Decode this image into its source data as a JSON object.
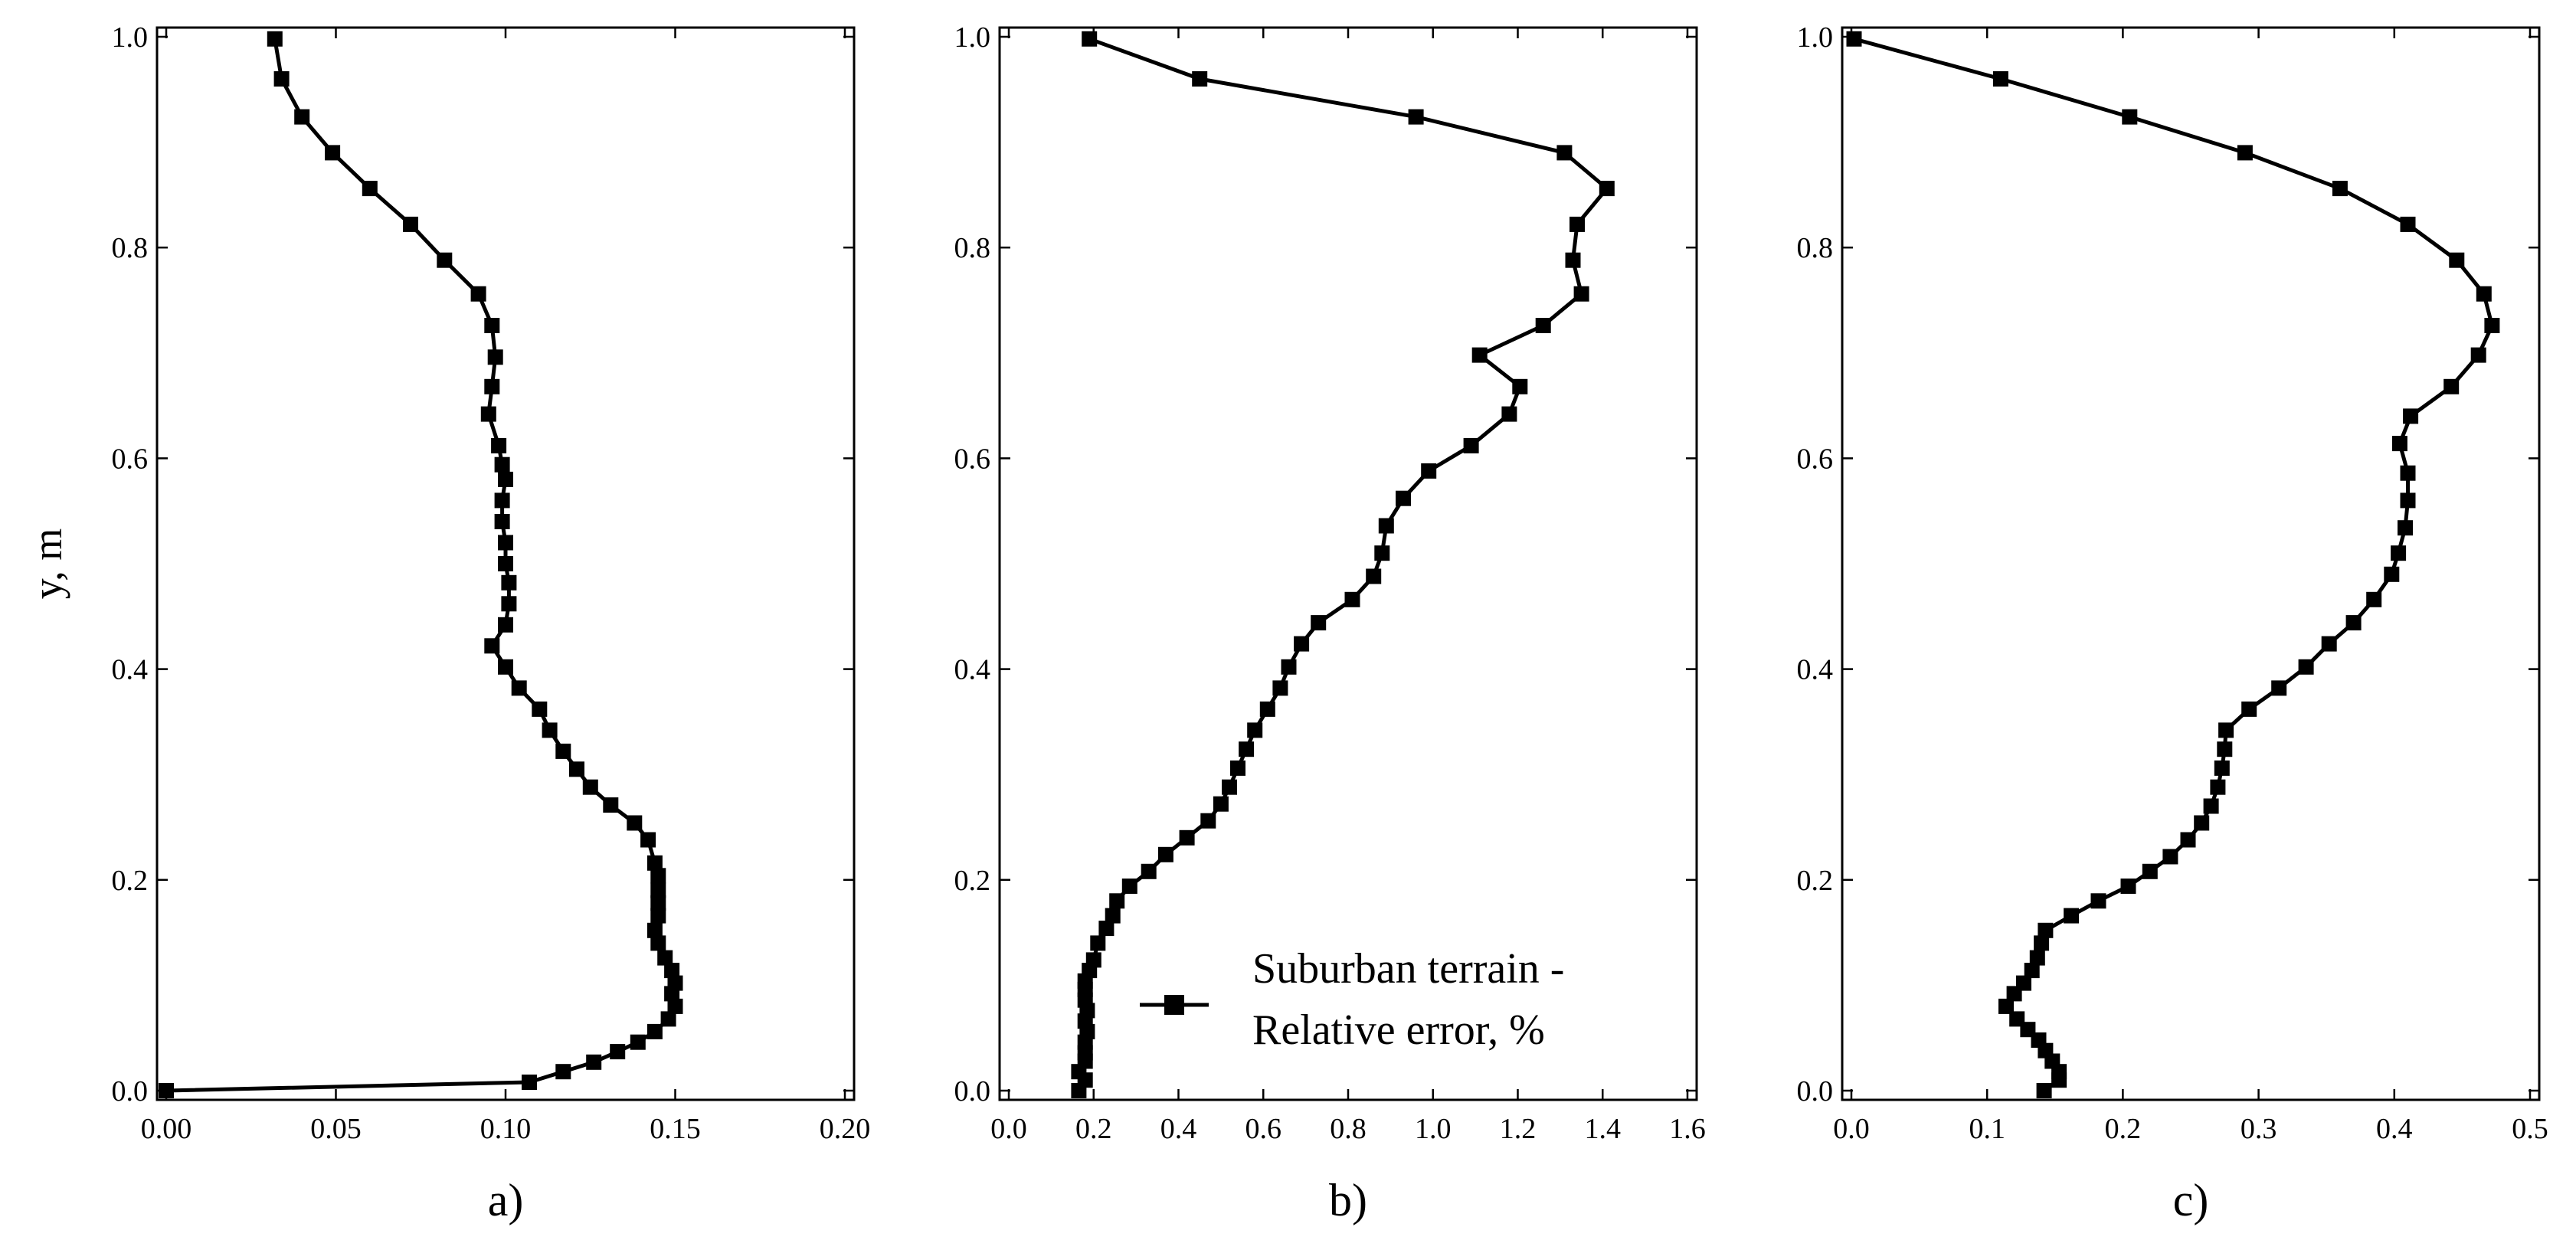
{
  "chart_data": [
    {
      "type": "line",
      "panel_label": "a)",
      "ylabel": "y, m",
      "xlim": [
        0.0,
        0.2
      ],
      "ylim": [
        0.0,
        1.0
      ],
      "xticks": [
        "0.00",
        "0.05",
        "0.10",
        "0.15",
        "0.20"
      ],
      "yticks": [
        "0.0",
        "0.2",
        "0.4",
        "0.6",
        "0.8",
        "1.0"
      ],
      "grid": false,
      "series": [
        {
          "points": [
            [
              0.0,
              0.0
            ],
            [
              0.107,
              0.008
            ],
            [
              0.117,
              0.018
            ],
            [
              0.126,
              0.027
            ],
            [
              0.133,
              0.037
            ],
            [
              0.139,
              0.046
            ],
            [
              0.144,
              0.056
            ],
            [
              0.148,
              0.068
            ],
            [
              0.15,
              0.08
            ],
            [
              0.149,
              0.092
            ],
            [
              0.15,
              0.102
            ],
            [
              0.149,
              0.114
            ],
            [
              0.147,
              0.126
            ],
            [
              0.145,
              0.14
            ],
            [
              0.144,
              0.152
            ],
            [
              0.145,
              0.166
            ],
            [
              0.145,
              0.178
            ],
            [
              0.145,
              0.19
            ],
            [
              0.145,
              0.204
            ],
            [
              0.144,
              0.216
            ],
            [
              0.142,
              0.238
            ],
            [
              0.138,
              0.254
            ],
            [
              0.131,
              0.271
            ],
            [
              0.125,
              0.288
            ],
            [
              0.121,
              0.305
            ],
            [
              0.117,
              0.322
            ],
            [
              0.113,
              0.342
            ],
            [
              0.11,
              0.362
            ],
            [
              0.104,
              0.382
            ],
            [
              0.1,
              0.402
            ],
            [
              0.096,
              0.422
            ],
            [
              0.1,
              0.442
            ],
            [
              0.101,
              0.462
            ],
            [
              0.101,
              0.482
            ],
            [
              0.1,
              0.5
            ],
            [
              0.1,
              0.52
            ],
            [
              0.099,
              0.54
            ],
            [
              0.099,
              0.56
            ],
            [
              0.1,
              0.58
            ],
            [
              0.099,
              0.594
            ],
            [
              0.098,
              0.612
            ],
            [
              0.095,
              0.642
            ],
            [
              0.096,
              0.668
            ],
            [
              0.097,
              0.696
            ],
            [
              0.096,
              0.726
            ],
            [
              0.092,
              0.756
            ],
            [
              0.082,
              0.788
            ],
            [
              0.072,
              0.822
            ],
            [
              0.06,
              0.856
            ],
            [
              0.049,
              0.89
            ],
            [
              0.04,
              0.924
            ],
            [
              0.034,
              0.96
            ],
            [
              0.032,
              0.998
            ]
          ]
        }
      ]
    },
    {
      "type": "line",
      "panel_label": "b)",
      "xlim": [
        0.0,
        1.6
      ],
      "ylim": [
        0.0,
        1.0
      ],
      "xticks": [
        "0.0",
        "0.2",
        "0.4",
        "0.6",
        "0.8",
        "1.0",
        "1.2",
        "1.4",
        "1.6"
      ],
      "yticks": [
        "0.0",
        "0.2",
        "0.4",
        "0.6",
        "0.8",
        "1.0"
      ],
      "grid": false,
      "legend": {
        "location": "lower-right",
        "label": [
          "Suburban terrain -",
          "Relative error, %"
        ]
      },
      "series": [
        {
          "points": [
            [
              0.165,
              0.0
            ],
            [
              0.18,
              0.01
            ],
            [
              0.165,
              0.018
            ],
            [
              0.18,
              0.028
            ],
            [
              0.18,
              0.036
            ],
            [
              0.18,
              0.046
            ],
            [
              0.185,
              0.056
            ],
            [
              0.18,
              0.066
            ],
            [
              0.185,
              0.076
            ],
            [
              0.18,
              0.086
            ],
            [
              0.18,
              0.096
            ],
            [
              0.18,
              0.104
            ],
            [
              0.19,
              0.114
            ],
            [
              0.2,
              0.124
            ],
            [
              0.21,
              0.14
            ],
            [
              0.23,
              0.154
            ],
            [
              0.245,
              0.166
            ],
            [
              0.255,
              0.18
            ],
            [
              0.285,
              0.194
            ],
            [
              0.33,
              0.208
            ],
            [
              0.37,
              0.224
            ],
            [
              0.42,
              0.24
            ],
            [
              0.47,
              0.256
            ],
            [
              0.5,
              0.272
            ],
            [
              0.52,
              0.288
            ],
            [
              0.54,
              0.306
            ],
            [
              0.56,
              0.324
            ],
            [
              0.58,
              0.342
            ],
            [
              0.61,
              0.362
            ],
            [
              0.64,
              0.382
            ],
            [
              0.66,
              0.402
            ],
            [
              0.69,
              0.424
            ],
            [
              0.73,
              0.444
            ],
            [
              0.81,
              0.466
            ],
            [
              0.86,
              0.488
            ],
            [
              0.88,
              0.51
            ],
            [
              0.89,
              0.536
            ],
            [
              0.93,
              0.562
            ],
            [
              0.99,
              0.588
            ],
            [
              1.09,
              0.612
            ],
            [
              1.18,
              0.642
            ],
            [
              1.205,
              0.668
            ],
            [
              1.11,
              0.698
            ],
            [
              1.26,
              0.726
            ],
            [
              1.35,
              0.756
            ],
            [
              1.33,
              0.788
            ],
            [
              1.34,
              0.822
            ],
            [
              1.41,
              0.856
            ],
            [
              1.31,
              0.89
            ],
            [
              0.96,
              0.924
            ],
            [
              0.45,
              0.96
            ],
            [
              0.19,
              0.998
            ]
          ]
        }
      ]
    },
    {
      "type": "line",
      "panel_label": "c)",
      "xlim": [
        0.0,
        0.5
      ],
      "ylim": [
        0.0,
        1.0
      ],
      "xticks": [
        "0.0",
        "0.1",
        "0.2",
        "0.3",
        "0.4",
        "0.5"
      ],
      "yticks": [
        "0.0",
        "0.2",
        "0.4",
        "0.6",
        "0.8",
        "1.0"
      ],
      "grid": false,
      "series": [
        {
          "points": [
            [
              0.142,
              0.0
            ],
            [
              0.153,
              0.01
            ],
            [
              0.153,
              0.018
            ],
            [
              0.148,
              0.028
            ],
            [
              0.143,
              0.038
            ],
            [
              0.138,
              0.048
            ],
            [
              0.13,
              0.058
            ],
            [
              0.122,
              0.068
            ],
            [
              0.114,
              0.08
            ],
            [
              0.12,
              0.092
            ],
            [
              0.127,
              0.102
            ],
            [
              0.133,
              0.114
            ],
            [
              0.137,
              0.126
            ],
            [
              0.14,
              0.14
            ],
            [
              0.143,
              0.152
            ],
            [
              0.162,
              0.166
            ],
            [
              0.182,
              0.18
            ],
            [
              0.204,
              0.194
            ],
            [
              0.22,
              0.208
            ],
            [
              0.235,
              0.222
            ],
            [
              0.248,
              0.238
            ],
            [
              0.258,
              0.254
            ],
            [
              0.265,
              0.27
            ],
            [
              0.27,
              0.288
            ],
            [
              0.273,
              0.306
            ],
            [
              0.275,
              0.324
            ],
            [
              0.276,
              0.342
            ],
            [
              0.293,
              0.362
            ],
            [
              0.315,
              0.382
            ],
            [
              0.335,
              0.402
            ],
            [
              0.352,
              0.424
            ],
            [
              0.37,
              0.444
            ],
            [
              0.385,
              0.466
            ],
            [
              0.398,
              0.49
            ],
            [
              0.403,
              0.51
            ],
            [
              0.408,
              0.534
            ],
            [
              0.41,
              0.56
            ],
            [
              0.41,
              0.586
            ],
            [
              0.404,
              0.614
            ],
            [
              0.412,
              0.64
            ],
            [
              0.442,
              0.668
            ],
            [
              0.462,
              0.698
            ],
            [
              0.472,
              0.726
            ],
            [
              0.466,
              0.756
            ],
            [
              0.446,
              0.788
            ],
            [
              0.41,
              0.822
            ],
            [
              0.36,
              0.856
            ],
            [
              0.29,
              0.89
            ],
            [
              0.205,
              0.924
            ],
            [
              0.11,
              0.96
            ],
            [
              0.002,
              0.998
            ]
          ]
        }
      ]
    }
  ]
}
